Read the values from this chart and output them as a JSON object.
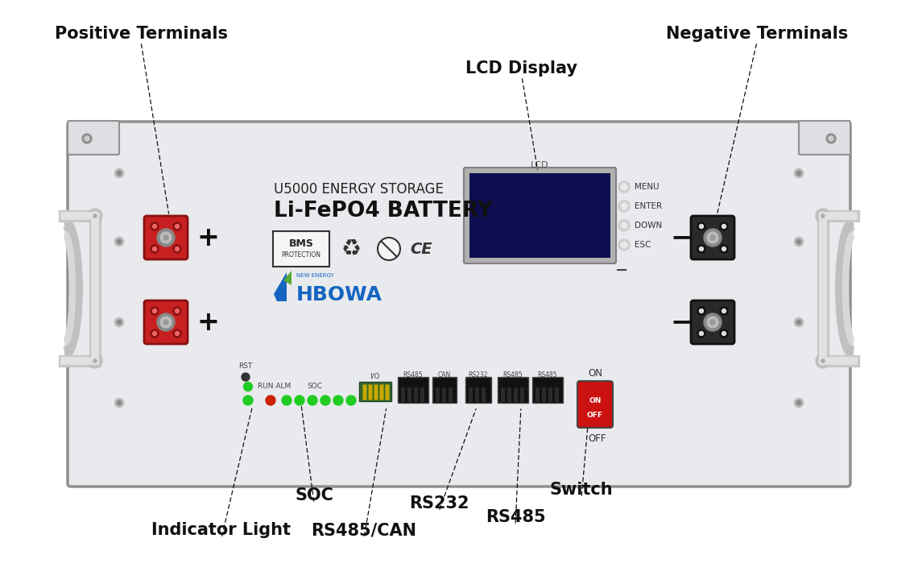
{
  "bg_color": "#ffffff",
  "body_color": "#e8eaed",
  "body_edge": "#b0b0b0",
  "panel_color": "#ebebed",
  "ear_color": "#dddfe2",
  "handle_color": "#c8c8c8",
  "red_terminal": "#c82020",
  "black_terminal": "#2a2a2a",
  "lcd_bg": "#0d0d50",
  "lcd_border": "#909090",
  "green_led": "#22cc22",
  "red_led": "#cc2200",
  "switch_red": "#cc1111",
  "port_dark": "#111111",
  "screw_color": "#a0a0a0",
  "labels": {
    "positive_terminals": "Positive Terminals",
    "negative_terminals": "Negative Terminals",
    "lcd_display": "LCD Display",
    "soc": "SOC",
    "rs232": "RS232",
    "rs485": "RS485",
    "switch": "Switch",
    "indicator_light": "Indicator Light",
    "rs485_can": "RS485/CAN"
  },
  "title_line1": "U5000 ENERGY STORAGE",
  "title_line2": "Li-FePO4 BATTERY",
  "brand": "HBOWA",
  "lcd_label": "LCD",
  "menu_labels": [
    "MENU",
    "ENTER",
    "DOWN",
    "ESC"
  ],
  "port_labels": [
    "RS485",
    "CAN",
    "RS232",
    "RS485",
    "RS485"
  ],
  "on_label": "ON",
  "off_label": "OFF",
  "run_label": "RUN ALM",
  "rst_label": "RST",
  "soc_label": "SOC",
  "io_label": "I/O",
  "label_fontsize": 15,
  "ann_lw": 0.9
}
